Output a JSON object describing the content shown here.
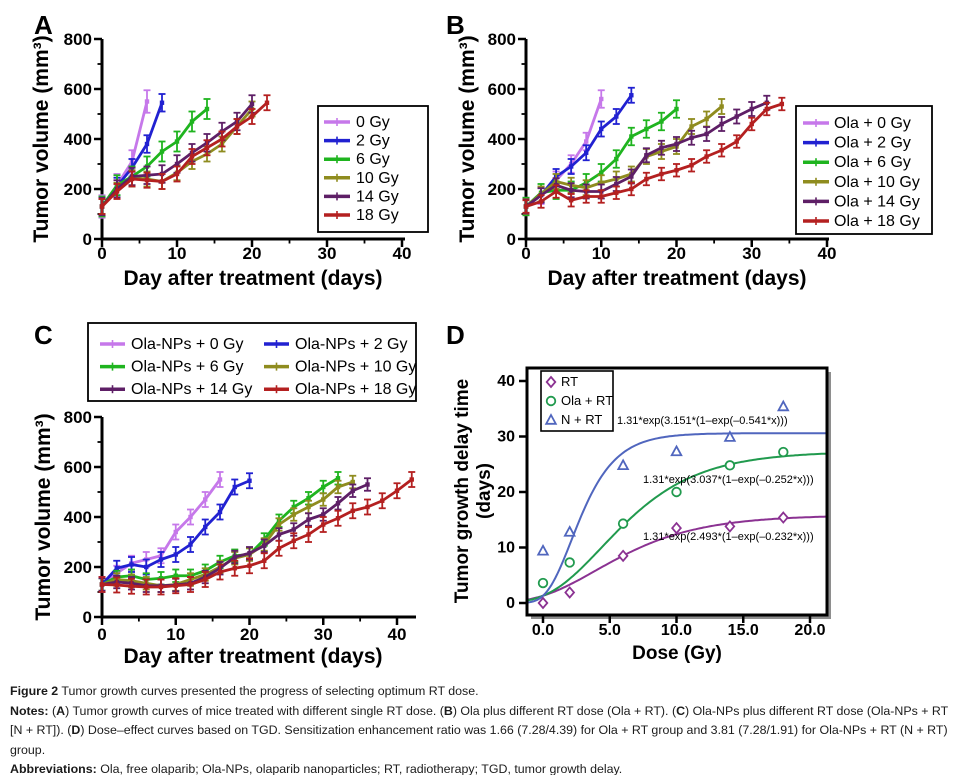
{
  "figure_label": "Figure 2",
  "chart_data": [
    {
      "panel": "A",
      "type": "line",
      "xlabel": "Day after treatment (days)",
      "ylabel": "Tumor volume (mm³)",
      "xlim": [
        0,
        40
      ],
      "ylim": [
        0,
        800
      ],
      "xticks": [
        0,
        10,
        20,
        30,
        40
      ],
      "yticks": [
        0,
        200,
        400,
        600,
        800
      ],
      "legend_position": "right",
      "series": [
        {
          "name": "0 Gy",
          "color": "#c678ea",
          "x": [
            0,
            2,
            4,
            6
          ],
          "y": [
            130,
            215,
            310,
            550
          ],
          "err": 45
        },
        {
          "name": "2 Gy",
          "color": "#2121d1",
          "x": [
            0,
            2,
            4,
            6,
            8
          ],
          "y": [
            130,
            210,
            285,
            380,
            545
          ],
          "err": 35
        },
        {
          "name": "6 Gy",
          "color": "#1fb41f",
          "x": [
            0,
            2,
            4,
            6,
            8,
            10,
            12,
            14
          ],
          "y": [
            130,
            215,
            250,
            290,
            350,
            390,
            470,
            520
          ],
          "err": 40
        },
        {
          "name": "10 Gy",
          "color": "#8f8c1f",
          "x": [
            0,
            2,
            4,
            6,
            8,
            10,
            12,
            14,
            16,
            18,
            20
          ],
          "y": [
            130,
            195,
            245,
            240,
            230,
            265,
            310,
            340,
            380,
            450,
            520
          ],
          "err": 30
        },
        {
          "name": "14 Gy",
          "color": "#5e1f66",
          "x": [
            0,
            2,
            4,
            6,
            8,
            10,
            12,
            14,
            16,
            18,
            20
          ],
          "y": [
            130,
            200,
            250,
            255,
            260,
            300,
            345,
            385,
            430,
            470,
            540
          ],
          "err": 35
        },
        {
          "name": "18 Gy",
          "color": "#b42020",
          "x": [
            0,
            2,
            4,
            6,
            8,
            10,
            12,
            14,
            16,
            18,
            20,
            22
          ],
          "y": [
            130,
            190,
            240,
            235,
            230,
            260,
            330,
            365,
            400,
            450,
            490,
            545
          ],
          "err": 30
        }
      ]
    },
    {
      "panel": "B",
      "type": "line",
      "xlabel": "Day after treatment (days)",
      "ylabel": "Tumor volume (mm³)",
      "xlim": [
        0,
        40
      ],
      "ylim": [
        0,
        800
      ],
      "xticks": [
        0,
        10,
        20,
        30,
        40
      ],
      "yticks": [
        0,
        200,
        400,
        600,
        800
      ],
      "legend_position": "right",
      "series": [
        {
          "name": "Ola + 0 Gy",
          "color": "#c678ea",
          "x": [
            0,
            2,
            4,
            6,
            8,
            10
          ],
          "y": [
            130,
            175,
            235,
            300,
            390,
            560
          ],
          "err": 35
        },
        {
          "name": "Ola + 2 Gy",
          "color": "#2121d1",
          "x": [
            0,
            2,
            4,
            6,
            8,
            10,
            12,
            14
          ],
          "y": [
            130,
            175,
            250,
            290,
            345,
            440,
            490,
            575
          ],
          "err": 30
        },
        {
          "name": "Ola + 6 Gy",
          "color": "#1fb41f",
          "x": [
            0,
            2,
            4,
            6,
            8,
            10,
            12,
            14,
            16,
            18,
            20
          ],
          "y": [
            130,
            185,
            195,
            195,
            225,
            265,
            320,
            410,
            440,
            470,
            520
          ],
          "err": 35
        },
        {
          "name": "Ola + 10 Gy",
          "color": "#8f8c1f",
          "x": [
            0,
            2,
            4,
            6,
            8,
            10,
            12,
            14,
            16,
            18,
            20,
            22,
            24,
            26
          ],
          "y": [
            130,
            180,
            230,
            215,
            205,
            225,
            240,
            260,
            330,
            350,
            370,
            450,
            480,
            530
          ],
          "err": 30
        },
        {
          "name": "Ola + 14 Gy",
          "color": "#5e1f66",
          "x": [
            0,
            2,
            4,
            6,
            8,
            10,
            12,
            14,
            16,
            18,
            20,
            22,
            24,
            26,
            28,
            30,
            32
          ],
          "y": [
            130,
            175,
            215,
            195,
            190,
            190,
            220,
            250,
            335,
            365,
            380,
            405,
            420,
            460,
            490,
            520,
            545
          ],
          "err": 28
        },
        {
          "name": "Ola + 18 Gy",
          "color": "#b42020",
          "x": [
            0,
            2,
            4,
            6,
            8,
            10,
            12,
            14,
            16,
            18,
            20,
            22,
            24,
            26,
            28,
            30,
            32,
            34
          ],
          "y": [
            130,
            150,
            190,
            155,
            170,
            170,
            185,
            200,
            240,
            260,
            275,
            295,
            330,
            355,
            390,
            460,
            520,
            540
          ],
          "err": 25
        }
      ]
    },
    {
      "panel": "C",
      "type": "line",
      "xlabel": "Day after treatment (days)",
      "ylabel": "Tumor volume (mm³)",
      "xlim": [
        0,
        42
      ],
      "ylim": [
        0,
        800
      ],
      "xticks": [
        0,
        10,
        20,
        30,
        40
      ],
      "yticks": [
        0,
        200,
        400,
        600,
        800
      ],
      "legend_position": "top",
      "series": [
        {
          "name": "Ola-NPs + 0 Gy",
          "color": "#c678ea",
          "x": [
            0,
            2,
            4,
            6,
            8,
            10,
            12,
            14,
            16
          ],
          "y": [
            130,
            175,
            215,
            230,
            245,
            340,
            400,
            470,
            550
          ],
          "err": 30
        },
        {
          "name": "Ola-NPs + 2 Gy",
          "color": "#2121d1",
          "x": [
            0,
            2,
            4,
            6,
            8,
            10,
            12,
            14,
            16,
            18,
            20
          ],
          "y": [
            130,
            195,
            210,
            200,
            230,
            250,
            290,
            360,
            420,
            520,
            545
          ],
          "err": 30
        },
        {
          "name": "Ola-NPs + 6 Gy",
          "color": "#1fb41f",
          "x": [
            0,
            2,
            4,
            6,
            8,
            10,
            12,
            14,
            16,
            18,
            20,
            22,
            24,
            26,
            28,
            30,
            32
          ],
          "y": [
            130,
            160,
            165,
            150,
            155,
            165,
            165,
            185,
            220,
            245,
            250,
            310,
            385,
            440,
            475,
            520,
            555
          ],
          "err": 25
        },
        {
          "name": "Ola-NPs + 10 Gy",
          "color": "#8f8c1f",
          "x": [
            0,
            2,
            4,
            6,
            8,
            10,
            12,
            14,
            16,
            18,
            20,
            22,
            24,
            26,
            28,
            30,
            32,
            34
          ],
          "y": [
            130,
            150,
            145,
            135,
            125,
            130,
            150,
            170,
            200,
            235,
            250,
            290,
            370,
            410,
            440,
            470,
            520,
            540
          ],
          "err": 25
        },
        {
          "name": "Ola-NPs + 14 Gy",
          "color": "#5e1f66",
          "x": [
            0,
            2,
            4,
            6,
            8,
            10,
            12,
            14,
            16,
            18,
            20,
            22,
            24,
            26,
            28,
            30,
            32,
            34,
            36
          ],
          "y": [
            130,
            140,
            135,
            125,
            125,
            128,
            135,
            160,
            195,
            240,
            255,
            285,
            330,
            350,
            390,
            410,
            455,
            505,
            530
          ],
          "err": 25
        },
        {
          "name": "Ola-NPs + 18 Gy",
          "color": "#b42020",
          "x": [
            0,
            2,
            4,
            6,
            8,
            10,
            12,
            14,
            16,
            18,
            20,
            22,
            24,
            26,
            28,
            30,
            32,
            34,
            36,
            38,
            40,
            42
          ],
          "y": [
            130,
            128,
            123,
            120,
            120,
            125,
            130,
            150,
            180,
            195,
            205,
            225,
            275,
            305,
            330,
            370,
            395,
            425,
            440,
            465,
            505,
            550
          ],
          "err": 30
        }
      ]
    },
    {
      "panel": "D",
      "type": "scatter",
      "xlabel": "Dose (Gy)",
      "ylabel": "Tumor growth delay time (days)",
      "ylabel_lines": [
        "Tumor growth delay time",
        "(days)"
      ],
      "xlim": [
        0,
        21
      ],
      "ylim": [
        0,
        42
      ],
      "xticks": [
        0,
        5,
        10,
        15,
        20
      ],
      "xtick_labels": [
        "0.0",
        "5.0",
        "10.0",
        "15.0",
        "20.0"
      ],
      "yticks": [
        0,
        10,
        20,
        30,
        40
      ],
      "legend_position": "upper-left",
      "series": [
        {
          "name": "RT",
          "marker": "diamond",
          "color": "#8b3292",
          "x": [
            0,
            2,
            6,
            10,
            14,
            18
          ],
          "y": [
            0,
            1.9,
            8.5,
            13.5,
            13.8,
            15.4
          ],
          "fit": {
            "scale": 1.31,
            "k": 2.493,
            "rate": 0.232,
            "formula": "1.31*exp(2.493*(1–exp(–0.232*x)))"
          }
        },
        {
          "name": "Ola + RT",
          "marker": "circle",
          "color": "#219a4e",
          "x": [
            0,
            2,
            6,
            10,
            14,
            18
          ],
          "y": [
            3.6,
            7.3,
            14.3,
            20,
            24.8,
            27.2
          ],
          "fit": {
            "scale": 1.31,
            "k": 3.037,
            "rate": 0.252,
            "formula": "1.31*exp(3.037*(1–exp(–0.252*x)))"
          }
        },
        {
          "name": "N + RT",
          "marker": "triangle",
          "color": "#5066be",
          "x": [
            0,
            2,
            6,
            10,
            14,
            18
          ],
          "y": [
            9.4,
            12.8,
            24.8,
            27.3,
            29.9,
            35.4
          ],
          "fit": {
            "scale": 1.31,
            "k": 3.151,
            "rate": 0.541,
            "formula": "1.31*exp(3.151*(1–exp(–0.541*x)))"
          }
        }
      ]
    }
  ],
  "caption": {
    "paragraphs": [
      {
        "name": "figure-title",
        "segments": [
          {
            "b": true,
            "t": "Figure 2"
          },
          {
            "b": false,
            "t": " Tumor growth curves presented the progress of selecting optimum RT dose."
          }
        ]
      },
      {
        "name": "notes",
        "segments": [
          {
            "b": true,
            "t": "Notes:"
          },
          {
            "b": false,
            "t": " ("
          },
          {
            "b": true,
            "t": "A"
          },
          {
            "b": false,
            "t": ") Tumor growth curves of mice treated with different single RT dose. ("
          },
          {
            "b": true,
            "t": "B"
          },
          {
            "b": false,
            "t": ") Ola plus different RT dose (Ola + RT). ("
          },
          {
            "b": true,
            "t": "C"
          },
          {
            "b": false,
            "t": ") Ola-NPs plus different RT dose (Ola-NPs + RT [N + RT]). ("
          },
          {
            "b": true,
            "t": "D"
          },
          {
            "b": false,
            "t": ") Dose–effect curves based on TGD. Sensitization enhancement ratio was 1.66 (7.28/4.39) for Ola + RT group and 3.81 (7.28/1.91) for Ola-NPs + RT (N + RT) group."
          }
        ]
      },
      {
        "name": "abbreviations",
        "segments": [
          {
            "b": true,
            "t": "Abbreviations:"
          },
          {
            "b": false,
            "t": " Ola, free olaparib; Ola-NPs, olaparib nanoparticles; RT, radiotherapy; TGD, tumor growth delay."
          }
        ]
      }
    ]
  }
}
